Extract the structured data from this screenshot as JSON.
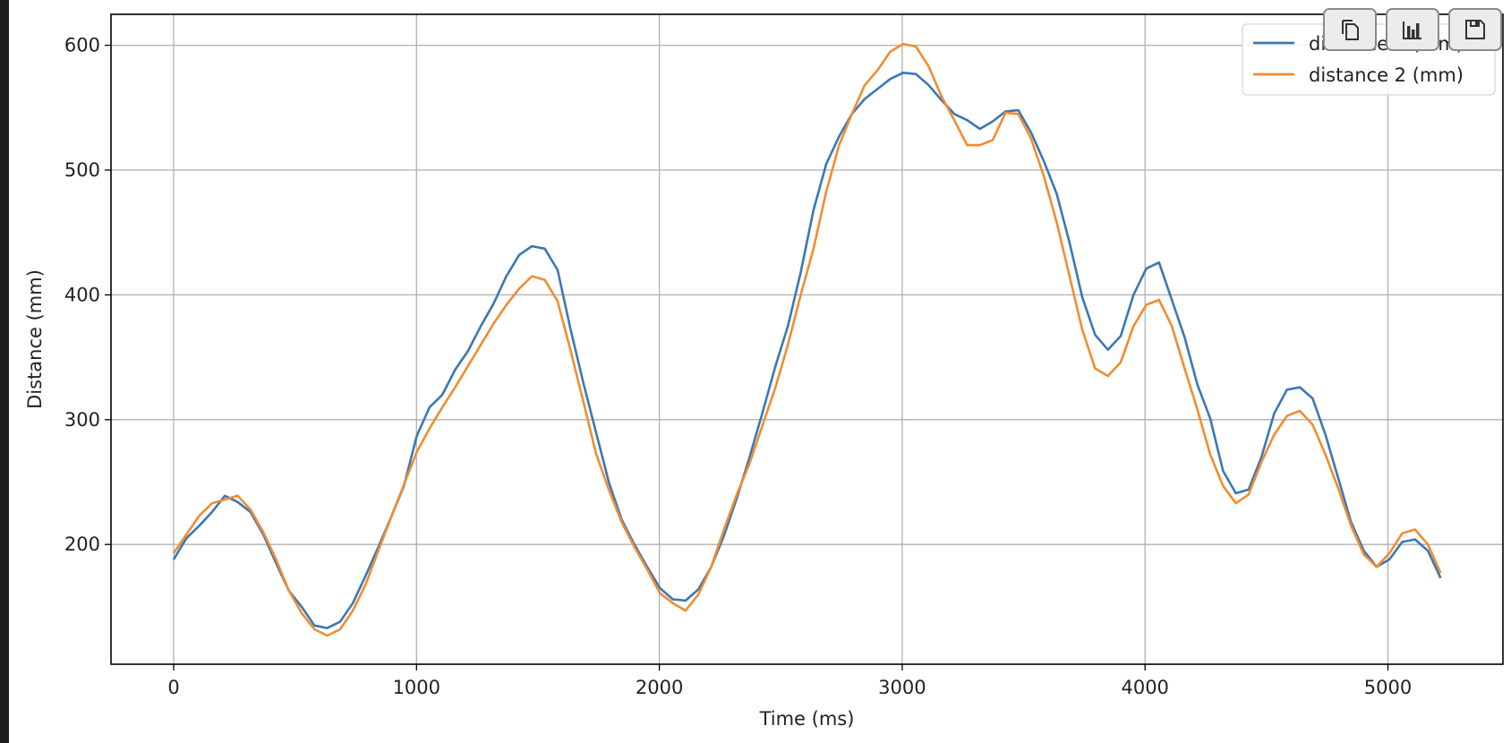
{
  "toolbar": {
    "buttons": [
      {
        "name": "copy-button",
        "icon": "copy-icon"
      },
      {
        "name": "chart-button",
        "icon": "bar-chart-icon"
      },
      {
        "name": "save-button",
        "icon": "floppy-disk-icon"
      }
    ]
  },
  "colors": {
    "series1": "#3a78b4",
    "series2": "#f28c30",
    "grid": "#b0b0b0",
    "axis": "#000000",
    "left_strip": "#1e1e1e"
  },
  "chart_data": {
    "type": "line",
    "title": "",
    "xlabel": "Time (ms)",
    "ylabel": "Distance (mm)",
    "xlim": [
      -260,
      5500
    ],
    "ylim": [
      105,
      625
    ],
    "xticks": [
      0,
      1000,
      2000,
      3000,
      4000,
      5000
    ],
    "xtick_labels": [
      "0",
      "1000",
      "2000",
      "3000",
      "4000",
      "5000"
    ],
    "yticks": [
      200,
      300,
      400,
      500,
      600
    ],
    "ytick_labels": [
      "200",
      "300",
      "400",
      "500",
      "600"
    ],
    "grid": true,
    "legend_position": "upper right",
    "x_step_ms": 55.5,
    "series": [
      {
        "name": "distance 1 (mm)",
        "color": "#3a78b4",
        "values": [
          188,
          205,
          215,
          226,
          239,
          234,
          226,
          208,
          185,
          163,
          150,
          135,
          133,
          138,
          153,
          175,
          198,
          222,
          247,
          287,
          310,
          320,
          340,
          355,
          375,
          393,
          415,
          432,
          439,
          437,
          420,
          373,
          330,
          290,
          250,
          220,
          200,
          182,
          165,
          156,
          155,
          164,
          182,
          207,
          237,
          270,
          305,
          342,
          375,
          418,
          468,
          505,
          527,
          545,
          557,
          565,
          573,
          578,
          577,
          568,
          556,
          545,
          540,
          533,
          539,
          547,
          548,
          530,
          507,
          481,
          442,
          398,
          368,
          356,
          367,
          400,
          421,
          426,
          396,
          366,
          328,
          301,
          259,
          241,
          244,
          270,
          305,
          324,
          326,
          317,
          288,
          253,
          218,
          195,
          182,
          188,
          202,
          204,
          195,
          173
        ]
      },
      {
        "name": "distance 2 (mm)",
        "color": "#f28c30",
        "values": [
          193,
          208,
          223,
          233,
          236,
          239,
          228,
          210,
          188,
          163,
          145,
          132,
          127,
          132,
          147,
          168,
          195,
          222,
          248,
          274,
          293,
          310,
          326,
          343,
          360,
          377,
          392,
          405,
          415,
          412,
          395,
          356,
          315,
          273,
          244,
          218,
          198,
          180,
          161,
          153,
          147,
          160,
          182,
          212,
          240,
          265,
          295,
          325,
          360,
          400,
          437,
          483,
          520,
          545,
          568,
          580,
          595,
          601,
          599,
          583,
          559,
          540,
          520,
          520,
          524,
          546,
          545,
          525,
          495,
          458,
          415,
          372,
          341,
          335,
          346,
          375,
          392,
          396,
          375,
          341,
          308,
          272,
          247,
          233,
          240,
          266,
          288,
          303,
          307,
          296,
          272,
          245,
          215,
          192,
          182,
          193,
          209,
          212,
          200,
          177
        ]
      }
    ]
  }
}
